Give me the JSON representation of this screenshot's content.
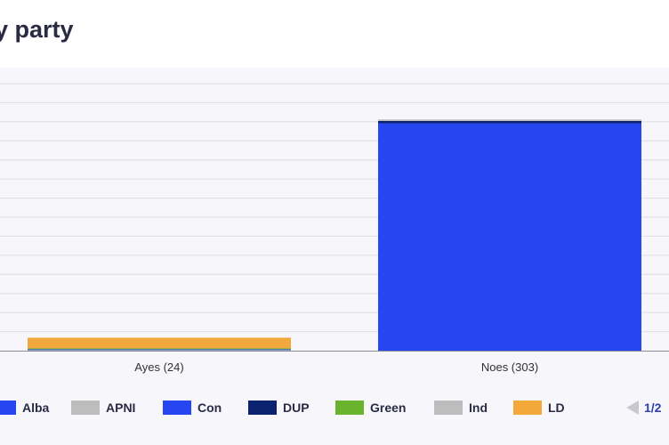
{
  "title": "y party",
  "chart_data": {
    "type": "bar",
    "stacked": true,
    "categories": [
      "Ayes (24)",
      "Noes (303)"
    ],
    "series": [
      {
        "name": "Alba",
        "color": "#2546f0",
        "values": [
          0,
          0
        ]
      },
      {
        "name": "APNI",
        "color": "#bdbdbd",
        "values": [
          1,
          0
        ]
      },
      {
        "name": "Con",
        "color": "#2546f0",
        "values": [
          1,
          298
        ]
      },
      {
        "name": "DUP",
        "color": "#0a2270",
        "values": [
          0,
          3
        ]
      },
      {
        "name": "Green",
        "color": "#6ab42d",
        "values": [
          1,
          0
        ]
      },
      {
        "name": "Ind",
        "color": "#bdbdbd",
        "values": [
          0,
          2
        ]
      },
      {
        "name": "LD",
        "color": "#f2a83b",
        "values": [
          14,
          0
        ]
      }
    ],
    "ylim": [
      0,
      350
    ],
    "grid": true,
    "legend_position": "bottom"
  },
  "legend": {
    "items": [
      {
        "label": "Alba",
        "color": "#2546f0"
      },
      {
        "label": "APNI",
        "color": "#bdbdbd"
      },
      {
        "label": "Con",
        "color": "#2546f0"
      },
      {
        "label": "DUP",
        "color": "#0a2270"
      },
      {
        "label": "Green",
        "color": "#6ab42d"
      },
      {
        "label": "Ind",
        "color": "#bdbdbd"
      },
      {
        "label": "LD",
        "color": "#f2a83b"
      }
    ],
    "pager": "1/2"
  }
}
